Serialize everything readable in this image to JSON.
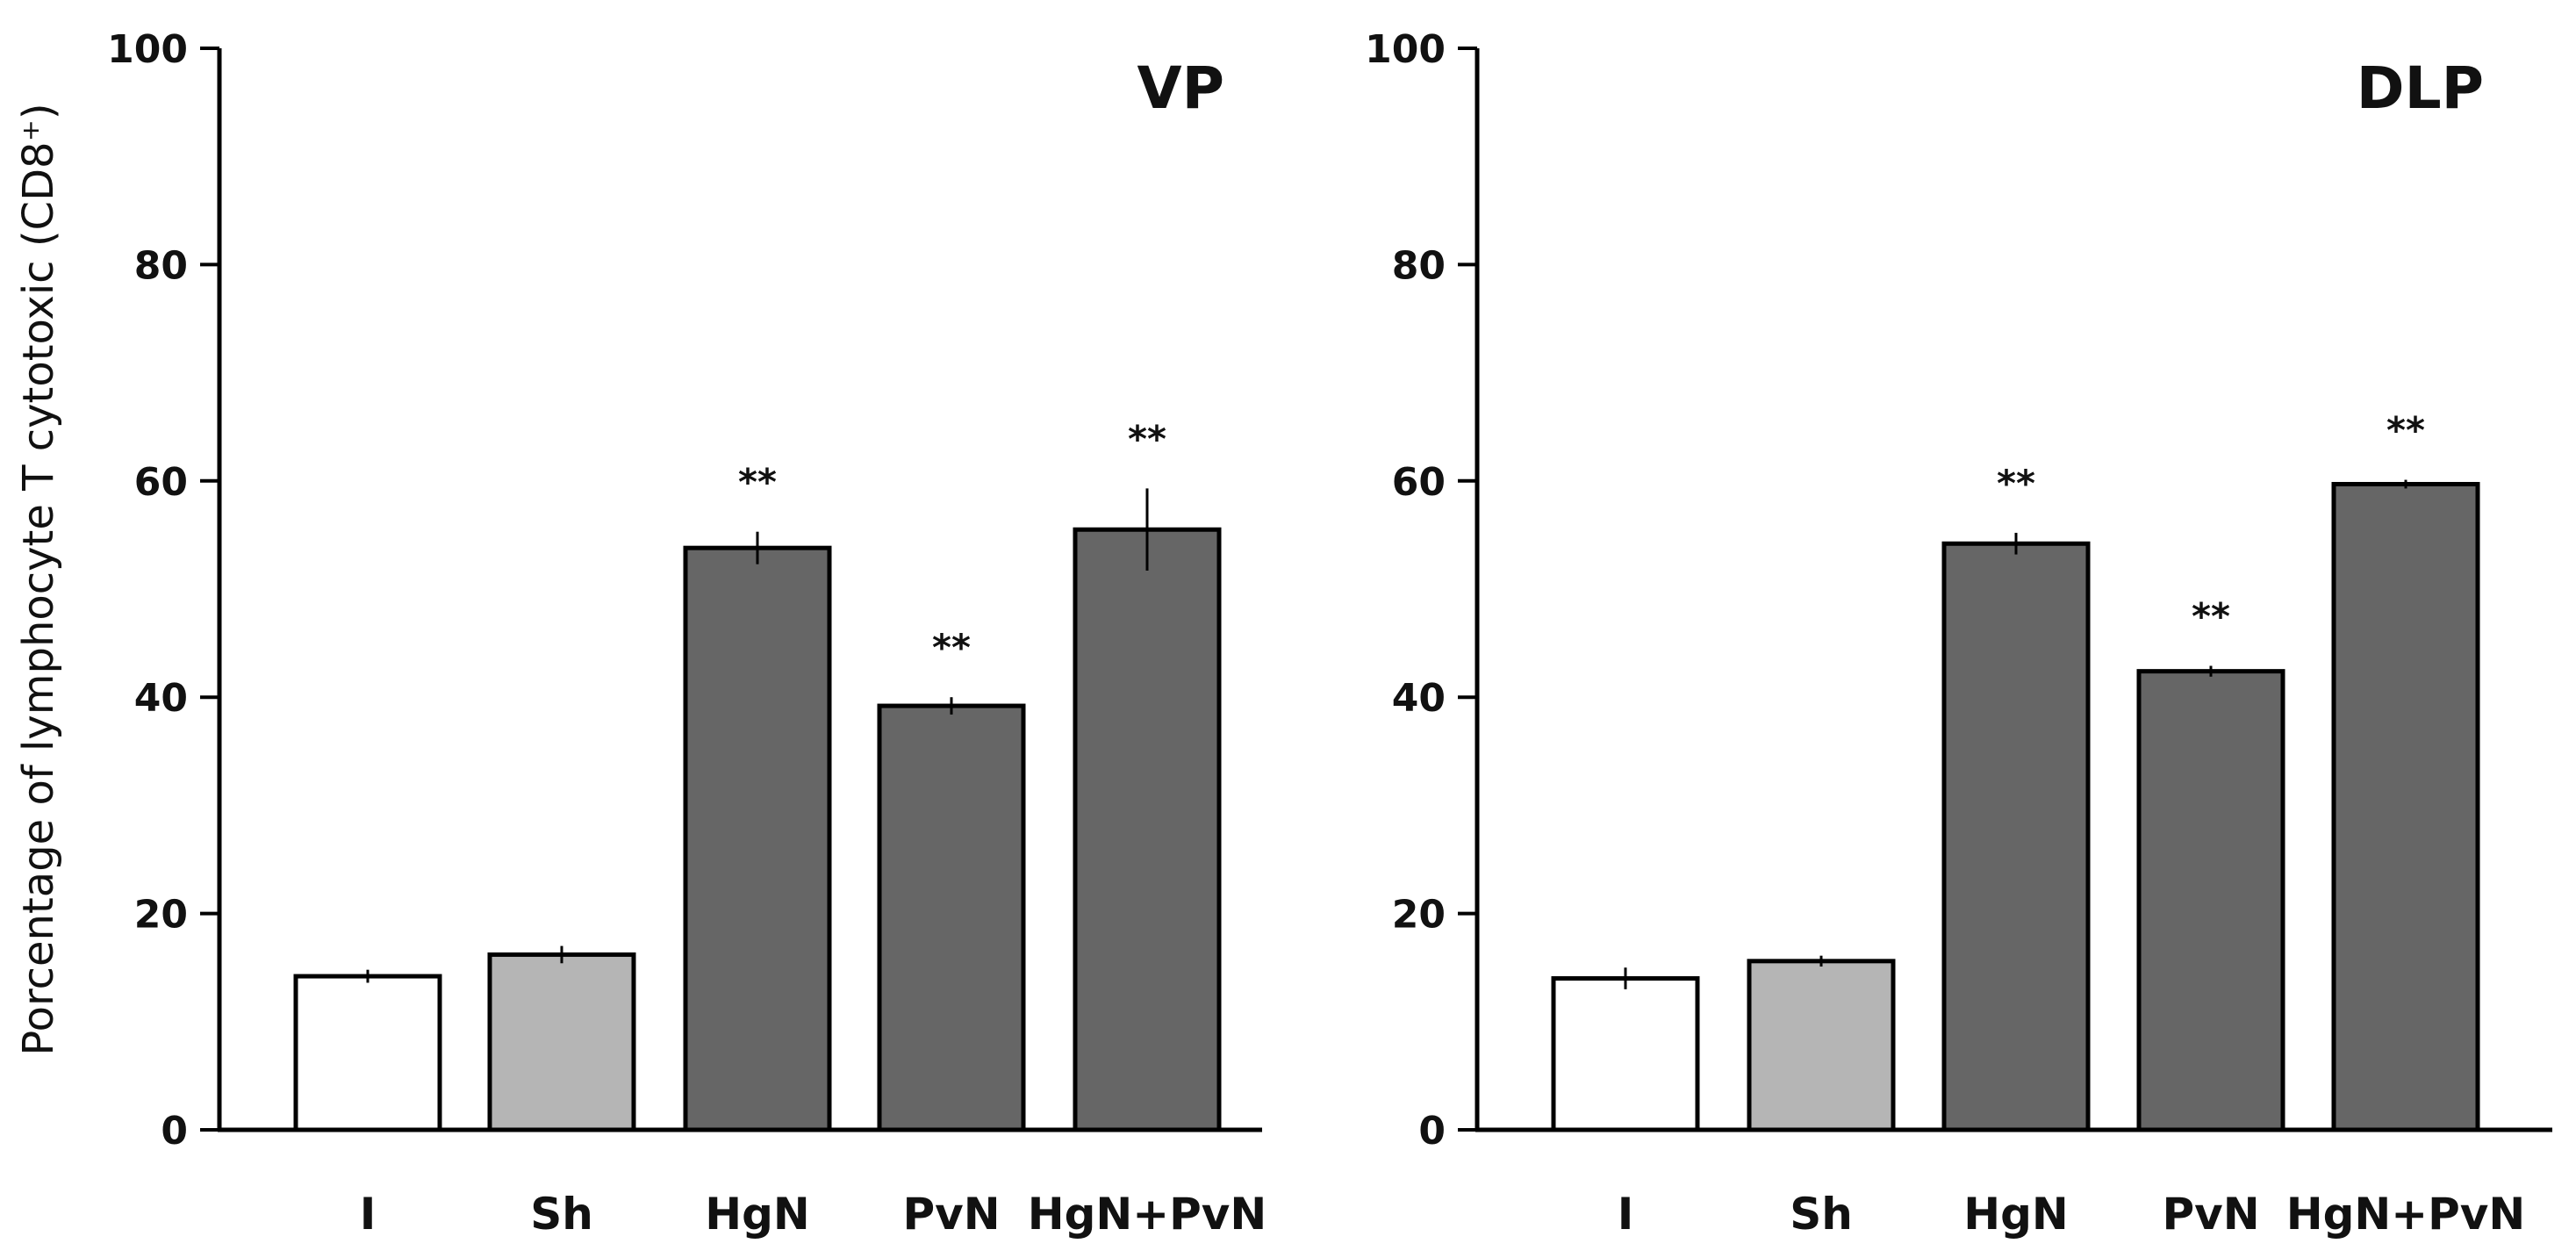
{
  "colors": {
    "control": "#ffffff",
    "sham": "#b5b5b5",
    "treated": "#666666",
    "axis": "#000000"
  },
  "chart_data": [
    {
      "type": "bar",
      "title": "VP",
      "xlabel": "",
      "ylabel": "Porcentage of lymphocyte T cytotoxic (CD8⁺)",
      "ylim": [
        0,
        100
      ],
      "yticks": [
        0,
        20,
        40,
        60,
        80,
        100
      ],
      "grid": false,
      "categories": [
        "I",
        "Sh",
        "HgN",
        "PvN",
        "HgN+PvN"
      ],
      "values": [
        14.2,
        16.2,
        53.8,
        39.2,
        55.5
      ],
      "errors": [
        0.6,
        0.8,
        1.5,
        0.8,
        3.8
      ],
      "bar_colors": [
        "control",
        "sham",
        "treated",
        "treated",
        "treated"
      ],
      "significance": [
        "",
        "",
        "**",
        "**",
        "**"
      ]
    },
    {
      "type": "bar",
      "title": "DLP",
      "xlabel": "",
      "ylabel": "",
      "ylim": [
        0,
        100
      ],
      "yticks": [
        0,
        20,
        40,
        60,
        80,
        100
      ],
      "grid": false,
      "categories": [
        "I",
        "Sh",
        "HgN",
        "PvN",
        "HgN+PvN"
      ],
      "values": [
        14.0,
        15.6,
        54.2,
        42.4,
        59.7
      ],
      "errors": [
        1.0,
        0.5,
        1.0,
        0.5,
        0.4
      ],
      "bar_colors": [
        "control",
        "sham",
        "treated",
        "treated",
        "treated"
      ],
      "significance": [
        "",
        "",
        "**",
        "**",
        "**"
      ]
    }
  ]
}
